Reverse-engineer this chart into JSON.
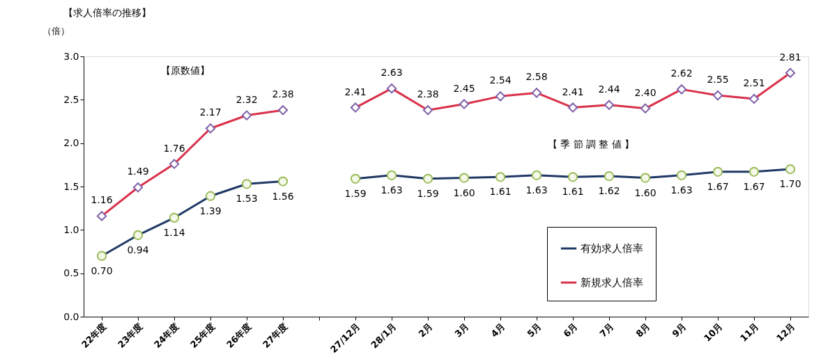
{
  "chart_data": {
    "type": "line",
    "title": "【求人倍率の推移】",
    "ylabel": "（倍）",
    "categories": [
      "22年度",
      "23年度",
      "24年度",
      "25年度",
      "26年度",
      "27年度",
      null,
      "27/12月",
      "28/1月",
      "2月",
      "3月",
      "4月",
      "5月",
      "6月",
      "7月",
      "8月",
      "9月",
      "10月",
      "11月",
      "12月"
    ],
    "series": [
      {
        "name": "有効求人倍率",
        "color": "#1f3864",
        "marker": "circle",
        "values": [
          0.7,
          0.94,
          1.14,
          1.39,
          1.53,
          1.56,
          null,
          1.59,
          1.63,
          1.59,
          1.6,
          1.61,
          1.63,
          1.61,
          1.62,
          1.6,
          1.63,
          1.67,
          1.67,
          1.7
        ],
        "value_labels": [
          "0.70",
          "0.94",
          "1.14",
          "1.39",
          "1.53",
          "1.56",
          null,
          "1.59",
          "1.63",
          "1.59",
          "1.60",
          "1.61",
          "1.63",
          "1.61",
          "1.62",
          "1.60",
          "1.63",
          "1.67",
          "1.67",
          "1.70"
        ]
      },
      {
        "name": "新規求人倍率",
        "color": "#d9314a",
        "marker": "diamond",
        "values": [
          1.16,
          1.49,
          1.76,
          2.17,
          2.32,
          2.38,
          null,
          2.41,
          2.63,
          2.38,
          2.45,
          2.54,
          2.58,
          2.41,
          2.44,
          2.4,
          2.62,
          2.55,
          2.51,
          2.81
        ],
        "value_labels": [
          "1.16",
          "1.49",
          "1.76",
          "2.17",
          "2.32",
          "2.38",
          null,
          "2.41",
          "2.63",
          "2.38",
          "2.45",
          "2.54",
          "2.58",
          "2.41",
          "2.44",
          "2.40",
          "2.62",
          "2.55",
          "2.51",
          "2.81"
        ]
      }
    ],
    "ylim": [
      0,
      3.0
    ],
    "yticks": [
      {
        "value": 0,
        "label": "0.0"
      },
      {
        "value": 0.5,
        "label": "0.5"
      },
      {
        "value": 1,
        "label": "1.0"
      },
      {
        "value": 1.5,
        "label": "1.5"
      },
      {
        "value": 2,
        "label": "2.0"
      },
      {
        "value": 2.5,
        "label": "2.5"
      },
      {
        "value": 3,
        "label": "3.0"
      }
    ],
    "annotations": [
      "【原数値】",
      "【 季 節 調 整 値 】"
    ],
    "grid": false,
    "legend": "bottom right",
    "line_style": "solid"
  }
}
